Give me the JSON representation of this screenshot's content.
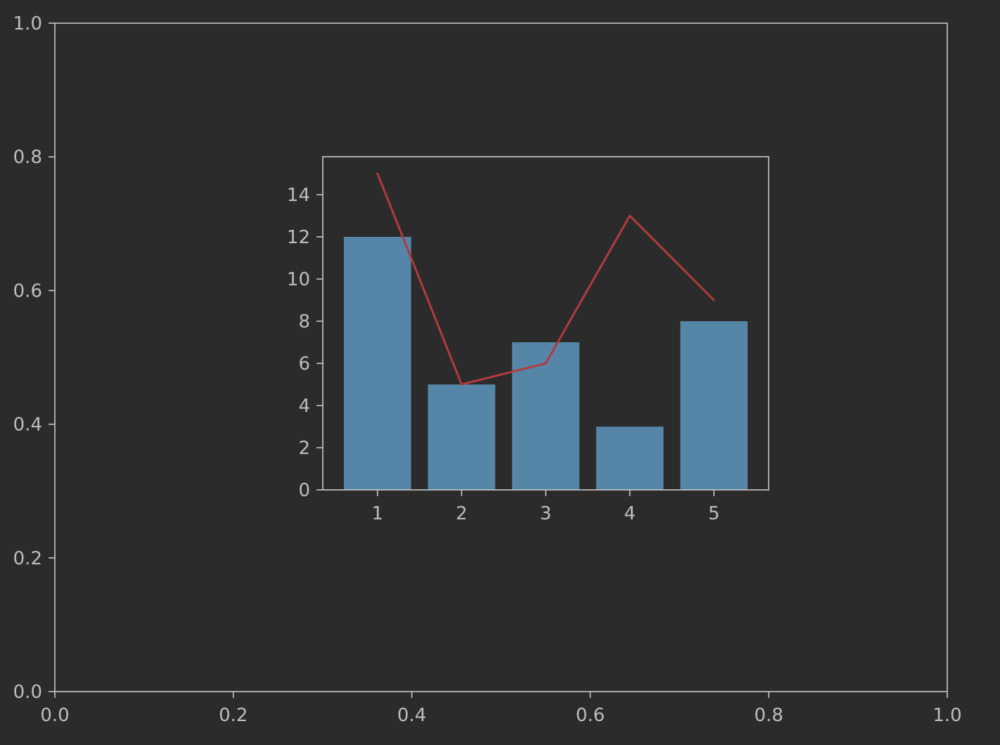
{
  "colors": {
    "background": "#2b2b2b",
    "axis": "#c8c8c8",
    "text": "#bdbdbd",
    "bar": "#5586a8",
    "line": "#b33a3a"
  },
  "chart_data": [
    {
      "type": "line",
      "title": "",
      "xlabel": "",
      "ylabel": "",
      "xlim": [
        0.0,
        1.0
      ],
      "ylim": [
        0.0,
        1.0
      ],
      "xticks": [
        "0.0",
        "0.2",
        "0.4",
        "0.6",
        "0.8",
        "1.0"
      ],
      "yticks": [
        "0.0",
        "0.2",
        "0.4",
        "0.6",
        "0.8",
        "1.0"
      ],
      "series": [],
      "grid": false
    },
    {
      "type": "bar",
      "title": "",
      "xlabel": "",
      "ylabel": "",
      "categories": [
        "1",
        "2",
        "3",
        "4",
        "5"
      ],
      "xlim": [
        0.35,
        5.65
      ],
      "ylim": [
        0,
        15.8
      ],
      "yticks": [
        "0",
        "2",
        "4",
        "6",
        "8",
        "10",
        "12",
        "14"
      ],
      "series": [
        {
          "type": "bar",
          "values": [
            12,
            5,
            7,
            3,
            8
          ]
        },
        {
          "type": "line",
          "values": [
            15,
            5,
            6,
            13,
            9
          ]
        }
      ],
      "grid": false
    }
  ]
}
